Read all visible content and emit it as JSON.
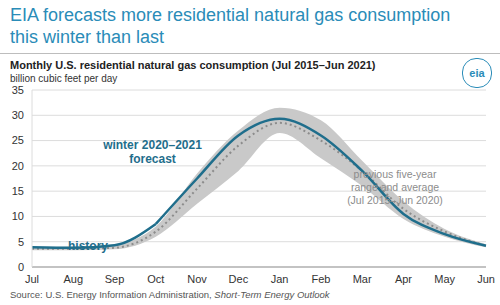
{
  "chart_data": {
    "type": "line",
    "title": "EIA forecasts more residential natural gas consumption this winter than last",
    "subtitle": "Monthly U.S. residential natural gas consumption (Jul 2015–Jun 2021)",
    "y_label": "billion cubic feet per day",
    "source": {
      "prefix": "Source: U.S. Energy Information Administration, ",
      "italic": "Short-Term Energy Outlook"
    },
    "logo": "eia",
    "annotation": [
      "previous five-year",
      "range and average",
      "(Jul 2015–Jun 2020)"
    ],
    "categories": [
      "Jul",
      "Aug",
      "Sep",
      "Oct",
      "Nov",
      "Dec",
      "Jan",
      "Feb",
      "Mar",
      "Apr",
      "May",
      "Jun"
    ],
    "series": [
      {
        "type": "area",
        "color": "#c9c9c9",
        "values": [
          [
            3.3,
            4.0
          ],
          [
            3.3,
            4.0
          ],
          [
            3.5,
            4.5
          ],
          [
            6.0,
            8.0
          ],
          [
            12.5,
            18.5
          ],
          [
            19.0,
            27.0
          ],
          [
            26.5,
            31.5
          ],
          [
            21.5,
            29.0
          ],
          [
            16.0,
            21.0
          ],
          [
            9.5,
            13.0
          ],
          [
            6.0,
            7.5
          ],
          [
            3.9,
            4.5
          ]
        ]
      },
      {
        "type": "line",
        "color": "#8c8c8c",
        "line_style": "dotted",
        "values": [
          3.6,
          3.6,
          3.8,
          7.0,
          15.5,
          24.0,
          28.5,
          25.0,
          19.0,
          11.5,
          7.0,
          4.2
        ]
      },
      {
        "name": "history",
        "type": "line",
        "color": "#1f6e8c",
        "line_style": "solid",
        "values": [
          3.9,
          3.8,
          4.3,
          8.5,
          null,
          null,
          null,
          null,
          null,
          null,
          null,
          null
        ]
      },
      {
        "name": "winter 2020–2021 forecast",
        "type": "line",
        "color": "#1f6e8c",
        "line_style": "solid",
        "values": [
          null,
          null,
          null,
          8.5,
          17.5,
          26.0,
          29.3,
          26.0,
          19.0,
          10.5,
          6.5,
          4.2
        ]
      }
    ],
    "ylim": [
      0,
      35
    ],
    "yticks": [
      0,
      5,
      10,
      15,
      20,
      25,
      30,
      35
    ],
    "grid": true
  }
}
